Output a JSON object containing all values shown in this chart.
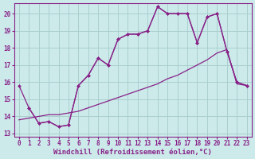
{
  "background_color": "#cceaea",
  "grid_color": "#aacfcf",
  "line_color": "#882288",
  "marker_color": "#882288",
  "xlabel": "Windchill (Refroidissement éolien,°C)",
  "xlabel_fontsize": 6.5,
  "tick_fontsize": 5.5,
  "xlim": [
    -0.5,
    23.5
  ],
  "ylim": [
    12.8,
    20.6
  ],
  "yticks": [
    13,
    14,
    15,
    16,
    17,
    18,
    19,
    20
  ],
  "xticks": [
    0,
    1,
    2,
    3,
    4,
    5,
    6,
    7,
    8,
    9,
    10,
    11,
    12,
    13,
    14,
    15,
    16,
    17,
    18,
    19,
    20,
    21,
    22,
    23
  ],
  "curves": [
    {
      "x": [
        0,
        1,
        2,
        3,
        4,
        5,
        6,
        7,
        8,
        9,
        10,
        11,
        12,
        13,
        14,
        15,
        16,
        17,
        18,
        19,
        20,
        21,
        22,
        23
      ],
      "y": [
        15.8,
        14.5,
        13.6,
        13.7,
        13.4,
        13.5,
        15.8,
        16.4,
        17.4,
        17.0,
        18.5,
        18.8,
        18.8,
        19.0,
        20.4,
        20.0,
        20.0,
        20.0,
        18.3,
        19.8,
        20.0,
        17.8,
        16.0,
        15.8
      ],
      "has_markers": true
    },
    {
      "x": [
        0,
        1,
        2,
        3,
        4,
        5,
        6,
        7,
        8,
        9,
        10,
        11,
        12,
        13,
        14,
        15,
        16,
        17,
        18,
        19,
        20,
        21,
        22,
        23
      ],
      "y": [
        13.8,
        13.9,
        14.0,
        14.1,
        14.1,
        14.2,
        14.3,
        14.5,
        14.7,
        14.9,
        15.1,
        15.3,
        15.5,
        15.7,
        15.9,
        16.2,
        16.4,
        16.7,
        17.0,
        17.3,
        17.7,
        17.9,
        15.9,
        15.8
      ],
      "has_markers": false
    },
    {
      "x": [
        1,
        2,
        3,
        4,
        5,
        6,
        7,
        8,
        9,
        10,
        11,
        12,
        13,
        14,
        15,
        16,
        17,
        18,
        19,
        20,
        21,
        22,
        23
      ],
      "y": [
        14.5,
        13.6,
        13.7,
        13.4,
        13.5,
        15.8,
        16.4,
        17.4,
        17.0,
        18.5,
        18.8,
        18.8,
        19.0,
        20.4,
        20.0,
        20.0,
        20.0,
        18.3,
        19.8,
        20.0,
        17.8,
        16.0,
        15.8
      ],
      "has_markers": true
    }
  ]
}
